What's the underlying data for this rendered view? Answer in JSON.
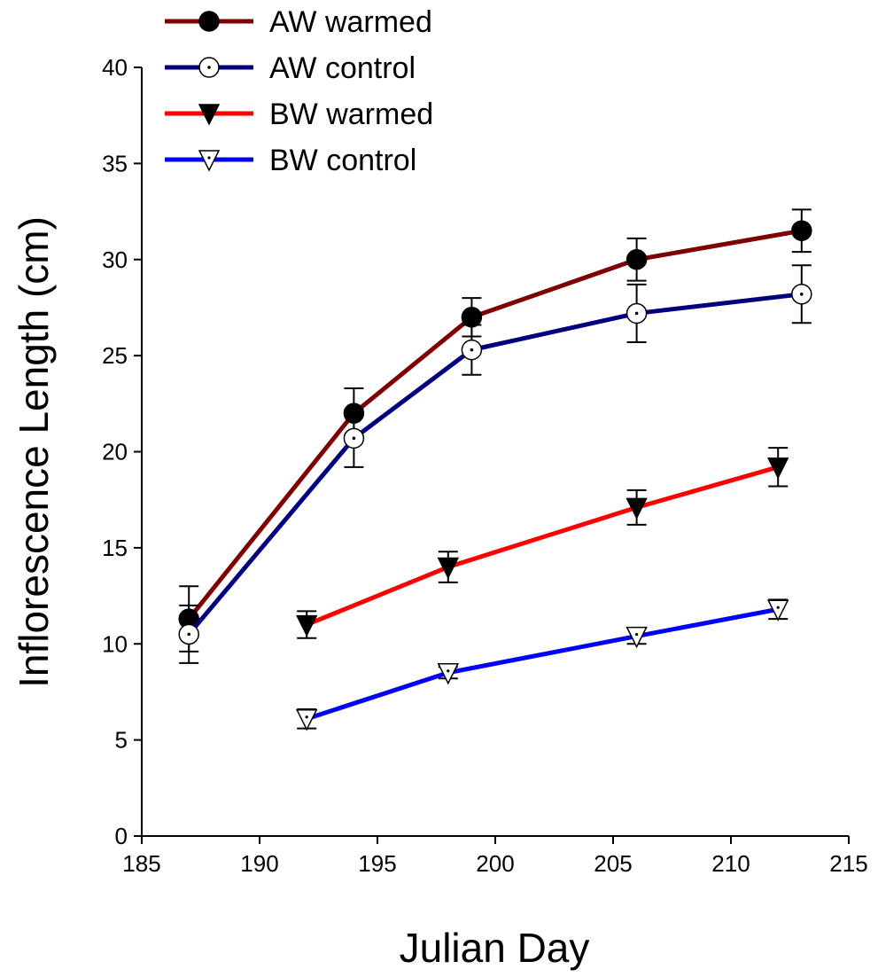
{
  "chart_data": {
    "type": "line",
    "title": "",
    "xlabel": "Julian Day",
    "ylabel": "Inflorescence Length (cm)",
    "xlim": [
      185,
      215
    ],
    "ylim": [
      0,
      40
    ],
    "xticks": [
      185,
      190,
      195,
      200,
      205,
      210,
      215
    ],
    "yticks": [
      0,
      5,
      10,
      15,
      20,
      25,
      30,
      35,
      40
    ],
    "grid": false,
    "legend_position": "top-left",
    "series": [
      {
        "name": "AW warmed",
        "color": "#7f0000",
        "marker": "filled-circle",
        "x": [
          187,
          194,
          199,
          206,
          213
        ],
        "y": [
          11.3,
          22.0,
          27.0,
          30.0,
          31.5
        ],
        "err": [
          1.7,
          1.3,
          1.0,
          1.1,
          1.1
        ]
      },
      {
        "name": "AW control",
        "color": "#00007f",
        "marker": "dotted-open-circle",
        "x": [
          187,
          194,
          199,
          206,
          213
        ],
        "y": [
          10.5,
          20.7,
          25.3,
          27.2,
          28.2
        ],
        "err": [
          1.5,
          1.5,
          1.3,
          1.5,
          1.5
        ]
      },
      {
        "name": "BW warmed",
        "color": "#ff0000",
        "marker": "filled-triangle-down",
        "x": [
          192,
          198,
          206,
          212
        ],
        "y": [
          11.0,
          14.0,
          17.1,
          19.2
        ],
        "err": [
          0.7,
          0.8,
          0.9,
          1.0
        ]
      },
      {
        "name": "BW control",
        "color": "#0000ff",
        "marker": "dotted-open-triangle-down",
        "x": [
          192,
          198,
          206,
          212
        ],
        "y": [
          6.1,
          8.5,
          10.4,
          11.8
        ],
        "err": [
          0.5,
          0.3,
          0.4,
          0.5
        ]
      }
    ]
  }
}
